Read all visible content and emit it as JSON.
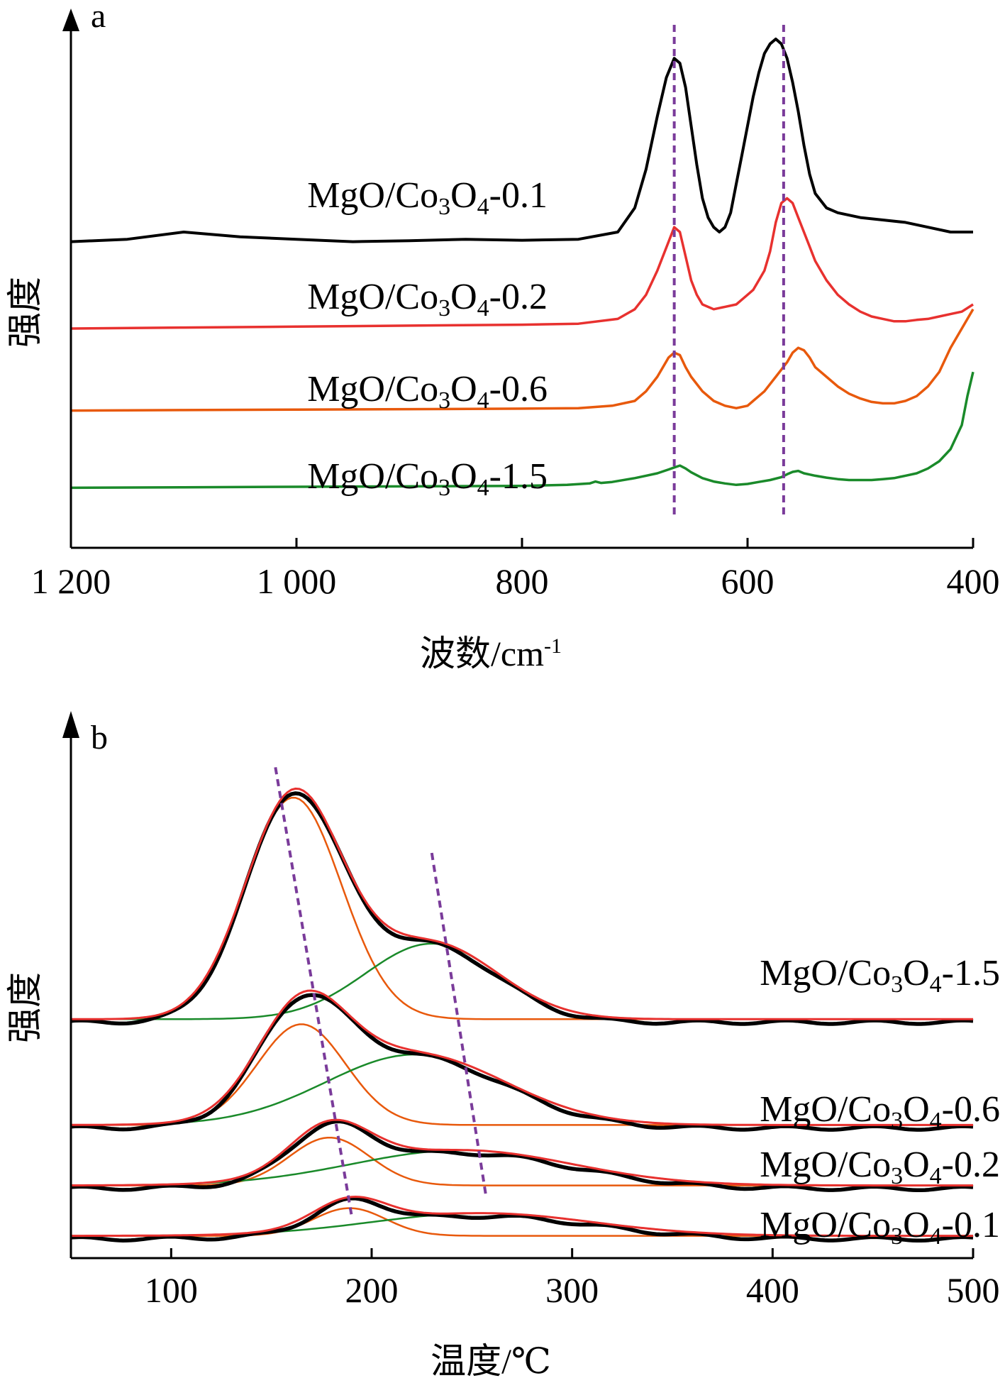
{
  "chart_data": [
    {
      "panel": "a",
      "type": "line",
      "xlabel": "波数/cm",
      "xlabel_sup": "-1",
      "ylabel": "强度",
      "xlim": [
        1200,
        400
      ],
      "x_reversed": true,
      "xticks": [
        1200,
        1000,
        800,
        600,
        400
      ],
      "xtick_labels": [
        "1 200",
        "1 000",
        "800",
        "600",
        "400"
      ],
      "ylim": [
        0,
        100
      ],
      "grid": false,
      "reference_lines_x": [
        665,
        568
      ],
      "reference_line_color": "#7a3b9a",
      "series": [
        {
          "name": "MgO/Co3O4-0.1",
          "label_main": "MgO/Co",
          "sub1": "3",
          "mid": "O",
          "sub2": "4",
          "tail": "-0.1",
          "color": "#000000",
          "x": [
            1200,
            1150,
            1100,
            1050,
            1000,
            950,
            900,
            850,
            800,
            750,
            715,
            700,
            690,
            680,
            672,
            665,
            660,
            655,
            650,
            645,
            640,
            635,
            630,
            625,
            620,
            615,
            610,
            605,
            600,
            595,
            590,
            585,
            580,
            575,
            570,
            565,
            560,
            555,
            550,
            545,
            540,
            530,
            520,
            500,
            480,
            460,
            440,
            420,
            400
          ],
          "y": [
            58,
            58.5,
            60,
            59,
            58.5,
            58,
            58.2,
            58.5,
            58.3,
            58.5,
            60,
            65,
            73,
            84,
            92,
            96,
            95,
            90,
            82,
            74,
            67,
            63,
            61,
            60,
            61,
            64,
            70,
            76,
            82,
            88,
            93,
            97,
            99,
            100,
            99,
            96,
            91,
            85,
            78,
            72,
            68,
            65,
            64,
            63,
            62.5,
            62,
            61,
            60,
            60
          ]
        },
        {
          "name": "MgO/Co3O4-0.2",
          "label_main": "MgO/Co",
          "sub1": "3",
          "mid": "O",
          "sub2": "4",
          "tail": "-0.2",
          "color": "#e8312f",
          "x": [
            1200,
            1100,
            1000,
            900,
            800,
            750,
            715,
            700,
            690,
            680,
            670,
            665,
            660,
            655,
            650,
            645,
            640,
            630,
            620,
            610,
            605,
            600,
            595,
            590,
            585,
            580,
            575,
            570,
            565,
            560,
            555,
            550,
            545,
            540,
            530,
            520,
            510,
            500,
            490,
            480,
            470,
            460,
            450,
            440,
            430,
            420,
            410,
            400
          ],
          "y": [
            40,
            40.2,
            40.4,
            40.6,
            40.8,
            41,
            42,
            44,
            47,
            52,
            58,
            61,
            60,
            55,
            50,
            47,
            45,
            44,
            44.5,
            45,
            46,
            47,
            48,
            50,
            52,
            56,
            62,
            66,
            67,
            66,
            63,
            60,
            57,
            54,
            50,
            47,
            45,
            43.5,
            42.5,
            42,
            41.5,
            41.5,
            41.8,
            42,
            42.5,
            43,
            43.5,
            45
          ]
        },
        {
          "name": "MgO/Co3O4-0.6",
          "label_main": "MgO/Co",
          "sub1": "3",
          "mid": "O",
          "sub2": "4",
          "tail": "-0.6",
          "color": "#e8590c",
          "x": [
            1200,
            1100,
            1000,
            900,
            800,
            750,
            720,
            700,
            690,
            680,
            670,
            665,
            660,
            655,
            650,
            640,
            630,
            620,
            610,
            600,
            595,
            590,
            585,
            580,
            575,
            570,
            565,
            560,
            555,
            550,
            545,
            540,
            530,
            520,
            510,
            500,
            490,
            480,
            470,
            460,
            450,
            440,
            430,
            420,
            410,
            400
          ],
          "y": [
            23,
            23.1,
            23.2,
            23.3,
            23.4,
            23.5,
            24,
            25,
            27,
            30,
            34,
            35,
            34.5,
            32,
            30,
            27,
            25,
            24,
            23.5,
            24,
            25,
            26,
            27,
            28.5,
            30,
            31.5,
            33,
            35,
            36,
            35.5,
            34,
            32,
            30,
            28,
            26.5,
            25.5,
            24.8,
            24.5,
            24.5,
            25,
            26,
            28,
            31,
            36,
            40,
            44
          ]
        },
        {
          "name": "MgO/Co3O4-1.5",
          "label_main": "MgO/Co",
          "sub1": "3",
          "mid": "O",
          "sub2": "4",
          "tail": "-1.5",
          "color": "#1a8a2a",
          "x": [
            1200,
            1100,
            1000,
            900,
            800,
            760,
            740,
            735,
            730,
            720,
            700,
            690,
            680,
            670,
            665,
            660,
            655,
            650,
            640,
            630,
            620,
            610,
            600,
            590,
            580,
            570,
            565,
            560,
            555,
            550,
            540,
            530,
            520,
            510,
            500,
            490,
            480,
            470,
            460,
            450,
            440,
            430,
            420,
            410,
            405,
            400
          ],
          "y": [
            7,
            7.1,
            7.2,
            7.3,
            7.4,
            7.6,
            7.9,
            8.3,
            8,
            8.2,
            9,
            9.5,
            10,
            10.8,
            11.2,
            11.6,
            11,
            10.2,
            9,
            8.3,
            7.9,
            7.6,
            7.8,
            8.2,
            8.6,
            9.2,
            9.8,
            10.3,
            10.5,
            10,
            9.5,
            9.1,
            8.8,
            8.6,
            8.6,
            8.6,
            8.8,
            9,
            9.5,
            10,
            11,
            12.5,
            15,
            20,
            26,
            31
          ]
        }
      ]
    },
    {
      "panel": "b",
      "type": "line",
      "xlabel": "温度/℃",
      "ylabel": "强度",
      "xlim": [
        50,
        500
      ],
      "xticks": [
        100,
        200,
        300,
        400,
        500
      ],
      "xtick_labels": [
        "100",
        "200",
        "300",
        "400",
        "500"
      ],
      "ylim": [
        0,
        100
      ],
      "grid": false,
      "reference_lines": [
        {
          "x": [
            152,
            190
          ],
          "y": [
            97,
            8
          ]
        },
        {
          "x": [
            230,
            257
          ],
          "y": [
            80,
            12
          ]
        }
      ],
      "reference_line_color": "#7a3b9a",
      "samples": [
        {
          "name": "MgO/Co3O4-1.5",
          "label_main": "MgO/Co",
          "sub1": "3",
          "mid": "O",
          "sub2": "4",
          "tail": "-1.5",
          "baseline": 47,
          "peaks": [
            {
              "center": 161,
              "height": 44,
              "width": 24,
              "color": "#e8590c"
            },
            {
              "center": 230,
              "height": 15,
              "width": 33,
              "color": "#1a8a2a"
            }
          ],
          "measured_color": "#000000",
          "fit_color": "#e8312f"
        },
        {
          "name": "MgO/Co3O4-0.6",
          "label_main": "MgO/Co",
          "sub1": "3",
          "mid": "O",
          "sub2": "4",
          "tail": "-0.6",
          "baseline": 26,
          "peaks": [
            {
              "center": 165,
              "height": 20,
              "width": 22,
              "color": "#e8590c"
            },
            {
              "center": 222,
              "height": 14,
              "width": 45,
              "color": "#1a8a2a"
            }
          ],
          "measured_color": "#000000",
          "fit_color": "#e8312f"
        },
        {
          "name": "MgO/Co3O4-0.2",
          "label_main": "MgO/Co",
          "sub1": "3",
          "mid": "O",
          "sub2": "4",
          "tail": "-0.2",
          "baseline": 14,
          "peaks": [
            {
              "center": 179,
              "height": 9.5,
              "width": 20,
              "color": "#e8590c"
            },
            {
              "center": 245,
              "height": 7,
              "width": 55,
              "color": "#1a8a2a"
            }
          ],
          "measured_color": "#000000",
          "fit_color": "#e8312f"
        },
        {
          "name": "MgO/Co3O4-0.1",
          "label_main": "MgO/Co",
          "sub1": "3",
          "mid": "O",
          "sub2": "4",
          "tail": "-0.1",
          "baseline": 4,
          "peaks": [
            {
              "center": 189,
              "height": 5.5,
              "width": 18,
              "color": "#e8590c"
            },
            {
              "center": 255,
              "height": 4.5,
              "width": 55,
              "color": "#1a8a2a"
            }
          ],
          "measured_color": "#000000",
          "fit_color": "#e8312f"
        }
      ]
    }
  ]
}
